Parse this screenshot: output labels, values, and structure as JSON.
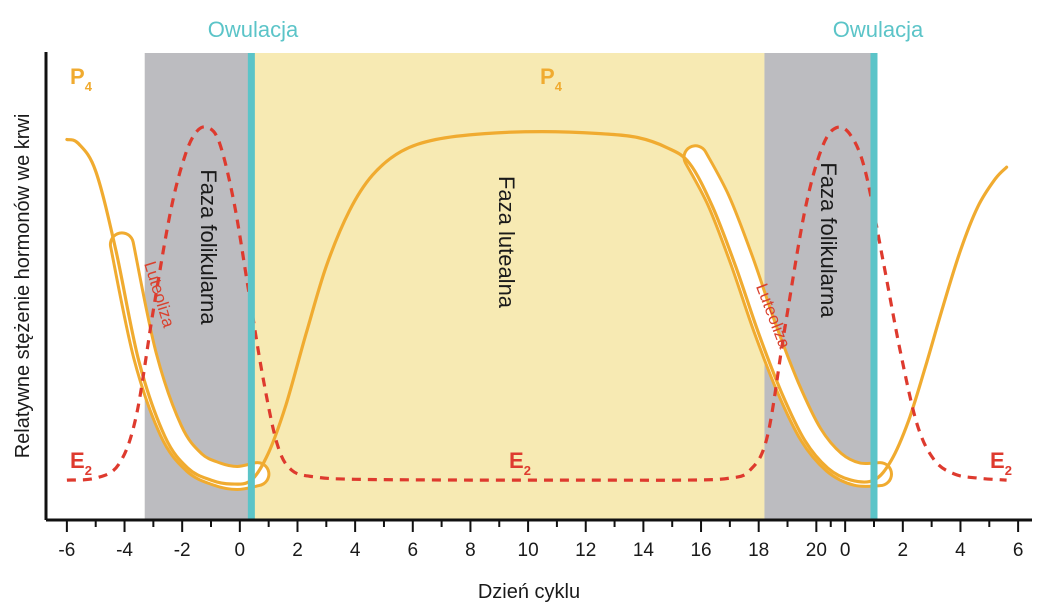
{
  "chart_data": {
    "type": "line",
    "title": "",
    "xlabel": "Dzień cyklu",
    "ylabel": "Relatywne stężenie hormonów we krwi",
    "x_tick_labels": [
      "-6",
      "-4",
      "-2",
      "0",
      "2",
      "4",
      "6",
      "8",
      "10",
      "12",
      "14",
      "16",
      "18",
      "20",
      "0",
      "2",
      "4",
      "6"
    ],
    "x_tick_days": [
      -6,
      -4,
      -2,
      0,
      2,
      4,
      6,
      8,
      10,
      12,
      14,
      16,
      18,
      20,
      21,
      23,
      25,
      27
    ],
    "xlim": [
      -6.1,
      27.1
    ],
    "ylim": [
      0,
      1
    ],
    "grid": false,
    "y_ticks_shown": false,
    "phases": [
      {
        "name": "Faza folikularna",
        "start": -3.3,
        "end": 0.4,
        "color": "#bcbcc0"
      },
      {
        "name": "Faza lutealna",
        "start": 0.4,
        "end": 18.2,
        "color": "#f7eab3"
      },
      {
        "name": "Faza folikularna",
        "start": 18.2,
        "end": 22.0,
        "color": "#bcbcc0"
      }
    ],
    "ovulation": {
      "label": "Owulacja",
      "days": [
        0.4,
        22.0
      ],
      "color": "#5bc4c8"
    },
    "luteolysis": {
      "label": "Luteoliza",
      "windows": [
        [
          -4.9,
          0.4
        ],
        [
          15.6,
          22.0
        ]
      ],
      "color": "#d9412e"
    },
    "series": [
      {
        "name": "P",
        "subscript": "4",
        "color": "#f0ab30",
        "style": "solid",
        "points": [
          [
            -6.0,
            0.88
          ],
          [
            -5.6,
            0.87
          ],
          [
            -5.0,
            0.8
          ],
          [
            -4.3,
            0.6
          ],
          [
            -3.5,
            0.32
          ],
          [
            -2.6,
            0.13
          ],
          [
            -1.8,
            0.05
          ],
          [
            -1.0,
            0.02
          ],
          [
            -0.3,
            0.01
          ],
          [
            0.4,
            0.02
          ],
          [
            1.0,
            0.09
          ],
          [
            1.6,
            0.21
          ],
          [
            2.3,
            0.39
          ],
          [
            3.0,
            0.56
          ],
          [
            3.8,
            0.7
          ],
          [
            4.6,
            0.79
          ],
          [
            5.6,
            0.85
          ],
          [
            6.8,
            0.88
          ],
          [
            8.5,
            0.895
          ],
          [
            10.5,
            0.9
          ],
          [
            12.5,
            0.895
          ],
          [
            13.8,
            0.885
          ],
          [
            14.8,
            0.86
          ],
          [
            15.6,
            0.82
          ],
          [
            16.4,
            0.71
          ],
          [
            17.2,
            0.56
          ],
          [
            18.0,
            0.39
          ],
          [
            18.8,
            0.24
          ],
          [
            19.6,
            0.12
          ],
          [
            20.4,
            0.05
          ],
          [
            21.2,
            0.02
          ],
          [
            22.0,
            0.02
          ],
          [
            22.6,
            0.07
          ],
          [
            23.2,
            0.17
          ],
          [
            23.8,
            0.31
          ],
          [
            24.4,
            0.46
          ],
          [
            25.0,
            0.6
          ],
          [
            25.6,
            0.71
          ],
          [
            26.2,
            0.78
          ],
          [
            26.6,
            0.81
          ]
        ]
      },
      {
        "name": "E",
        "subscript": "2",
        "color": "#de3a2e",
        "style": "dashed",
        "points": [
          [
            -6.0,
            0.02
          ],
          [
            -5.0,
            0.025
          ],
          [
            -4.2,
            0.06
          ],
          [
            -3.6,
            0.18
          ],
          [
            -3.0,
            0.45
          ],
          [
            -2.4,
            0.7
          ],
          [
            -1.9,
            0.84
          ],
          [
            -1.5,
            0.9
          ],
          [
            -1.1,
            0.91
          ],
          [
            -0.7,
            0.87
          ],
          [
            -0.2,
            0.72
          ],
          [
            0.3,
            0.5
          ],
          [
            0.8,
            0.28
          ],
          [
            1.3,
            0.11
          ],
          [
            1.8,
            0.045
          ],
          [
            2.6,
            0.028
          ],
          [
            4.0,
            0.022
          ],
          [
            8.0,
            0.02
          ],
          [
            12.0,
            0.02
          ],
          [
            15.5,
            0.02
          ],
          [
            17.0,
            0.025
          ],
          [
            17.7,
            0.045
          ],
          [
            18.3,
            0.13
          ],
          [
            18.9,
            0.4
          ],
          [
            19.6,
            0.7
          ],
          [
            20.2,
            0.86
          ],
          [
            20.7,
            0.91
          ],
          [
            21.2,
            0.89
          ],
          [
            21.7,
            0.8
          ],
          [
            22.3,
            0.58
          ],
          [
            22.9,
            0.35
          ],
          [
            23.5,
            0.16
          ],
          [
            24.1,
            0.07
          ],
          [
            24.8,
            0.035
          ],
          [
            25.6,
            0.025
          ],
          [
            26.6,
            0.02
          ]
        ]
      }
    ]
  },
  "labels": {
    "ovulation": "Owulacja",
    "follicular_left": "Faza folikularna",
    "luteal": "Faza lutealna",
    "follicular_right": "Faza folikularna",
    "luteolysis_left": "Luteoliza",
    "luteolysis_right": "Luteoliza",
    "p4_name": "P",
    "p4_sub": "4",
    "e2_name": "E",
    "e2_sub": "2"
  }
}
